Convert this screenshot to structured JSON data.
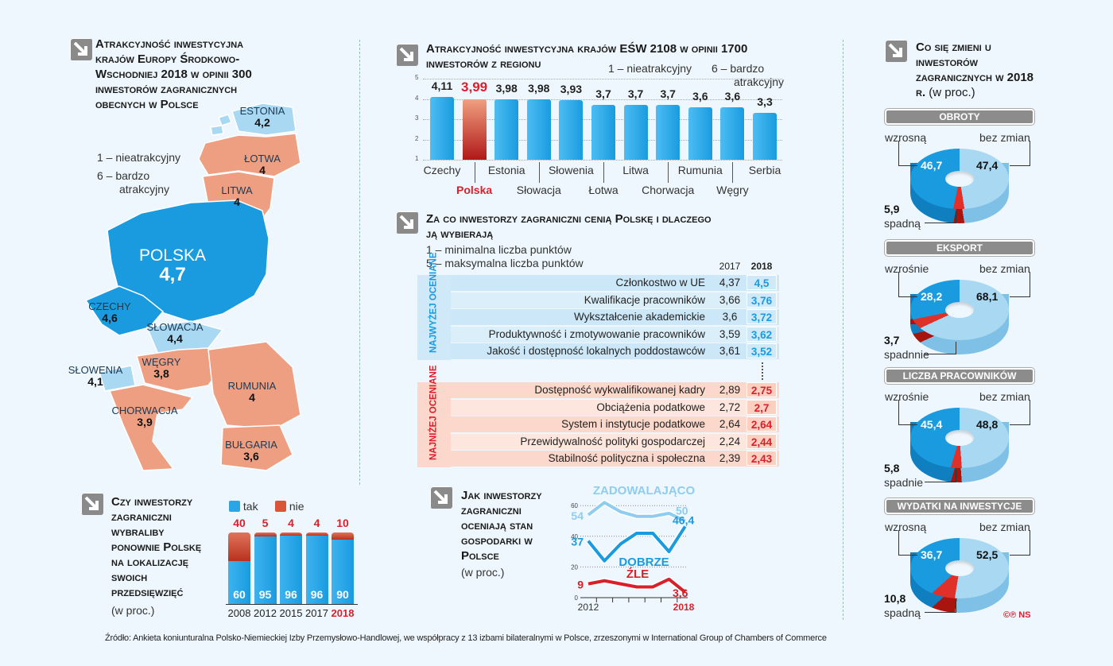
{
  "map": {
    "title": "Atrakcyjność inwestycyjna krajów Europy Środkowo-Wschodniej 2018 w opinii 300 inwestorów zagranicznych obecnych w Polsce",
    "legend_min": "1 – nieatrakcyjny",
    "legend_max": "6 – bardzo atrakcyjny",
    "countries": [
      {
        "name": "ESTONIA",
        "value": "4,2"
      },
      {
        "name": "ŁOTWA",
        "value": "4"
      },
      {
        "name": "LITWA",
        "value": "4"
      },
      {
        "name": "POLSKA",
        "value": "4,7"
      },
      {
        "name": "CZECHY",
        "value": "4,6"
      },
      {
        "name": "SŁOWACJA",
        "value": "4,4"
      },
      {
        "name": "SŁOWENIA",
        "value": "4,1"
      },
      {
        "name": "WĘGRY",
        "value": "3,8"
      },
      {
        "name": "RUMUNIA",
        "value": "4"
      },
      {
        "name": "CHORWACJA",
        "value": "3,9"
      },
      {
        "name": "BUŁGARIA",
        "value": "3,6"
      }
    ],
    "colors": {
      "high": "#1a9be0",
      "mid": "#a9d8f3",
      "low": "#ee9f82"
    }
  },
  "reselect": {
    "title": "Czy inwestorzy zagraniczni wybraliby ponownie Polskę na lokalizację swoich przedsięwzięć",
    "unit": "(w proc.)",
    "chart_data": {
      "type": "bar",
      "stacked": true,
      "categories": [
        "2008",
        "2012",
        "2015",
        "2017",
        "2018"
      ],
      "series": [
        {
          "name": "tak",
          "values": [
            60,
            95,
            96,
            96,
            90
          ],
          "color": "#2aa6e6"
        },
        {
          "name": "nie",
          "values": [
            40,
            5,
            4,
            4,
            10
          ],
          "color": "#d9553a"
        }
      ],
      "highlight": "2018"
    }
  },
  "cee": {
    "title": "Atrakcyjność inwestycyjna krajów EŚW 2108 w opinii 1700 inwestorów z regionu",
    "legend_min": "1 – nieatrakcyjny",
    "legend_max": "6 – bardzo atrakcyjny",
    "chart_data": {
      "type": "bar",
      "ylim": [
        1,
        5
      ],
      "yticks": [
        "1",
        "2",
        "3",
        "4",
        "5"
      ],
      "categories": [
        "Czechy",
        "Polska",
        "Estonia",
        "Słowacja",
        "Słowenia",
        "Łotwa",
        "Litwa",
        "Chorwacja",
        "Rumunia",
        "Węgry",
        "Serbia"
      ],
      "values": [
        4.11,
        3.99,
        3.98,
        3.98,
        3.93,
        3.7,
        3.7,
        3.7,
        3.6,
        3.6,
        3.3
      ],
      "labels": [
        "4,11",
        "3,99",
        "3,98",
        "3,98",
        "3,93",
        "3,7",
        "3,7",
        "3,7",
        "3,6",
        "3,6",
        "3,3"
      ],
      "highlight": "Polska"
    }
  },
  "reasons": {
    "title": "Za co inwestorzy zagraniczni cenią Polskę i dlaczego ją wybierają",
    "legend_min": "1 – minimalna liczba punktów",
    "legend_max": "5 – maksymalna liczba punktów",
    "col_2017": "2017",
    "col_2018": "2018",
    "top_label": "NAJWYŻEJ OCENIANE",
    "bottom_label": "NAJNIŻEJ OCENIANE",
    "top": [
      [
        "Członkostwo w UE",
        "4,37",
        "4,5"
      ],
      [
        "Kwalifikacje pracowników",
        "3,66",
        "3,76"
      ],
      [
        "Wykształcenie akademickie",
        "3,6",
        "3,72"
      ],
      [
        "Produktywność i zmotywowanie pracowników",
        "3,59",
        "3,62"
      ],
      [
        "Jakość i dostępność lokalnych poddostawców",
        "3,61",
        "3,52"
      ]
    ],
    "bottom": [
      [
        "Dostępność wykwalifikowanej kadry",
        "2,89",
        "2,75"
      ],
      [
        "Obciążenia podatkowe",
        "2,72",
        "2,7"
      ],
      [
        "System i instytucje podatkowe",
        "2,64",
        "2,64"
      ],
      [
        "Przewidywalność polityki gospodarczej",
        "2,24",
        "2,44"
      ],
      [
        "Stabilność polityczna i społeczna",
        "2,39",
        "2,43"
      ]
    ]
  },
  "economy": {
    "title": "Jak inwestorzy zagraniczni oceniają stan gospodarki w Polsce",
    "unit": "(w proc.)",
    "chart_data": {
      "type": "line",
      "ylim": [
        0,
        65
      ],
      "yticks": [
        "0",
        "20",
        "40",
        "60"
      ],
      "x_first": "2012",
      "x_last": "2018",
      "series": [
        {
          "name": "ZADOWALAJĄCO",
          "values": [
            54,
            62,
            56,
            53,
            53,
            55,
            50
          ],
          "first": "54",
          "last": "50",
          "color": "#8fcdf0"
        },
        {
          "name": "DOBRZE",
          "values": [
            37,
            24,
            35,
            42,
            42,
            30,
            46.4
          ],
          "first": "37",
          "last": "46,4",
          "color": "#1a9be0"
        },
        {
          "name": "ŹLE",
          "values": [
            9,
            11,
            9,
            7,
            7,
            12,
            3.6
          ],
          "first": "9",
          "last": "3,6",
          "color": "#d9202a"
        }
      ]
    }
  },
  "changes": {
    "title": "Co się zmieni u inwestorów zagranicznych w 2018 r.",
    "unit": "(w proc.)",
    "label_same": "bez zmian",
    "chart_data": [
      {
        "type": "pie",
        "title": "OBROTY",
        "up_label": "wzrosną",
        "down_label": "spadną",
        "up": "46,7",
        "same": "47,4",
        "down": "5,9",
        "values": [
          46.7,
          47.4,
          5.9
        ]
      },
      {
        "type": "pie",
        "title": "EKSPORT",
        "up_label": "wzrośnie",
        "down_label": "spadnnie",
        "up": "28,2",
        "same": "68,1",
        "down": "3,7",
        "values": [
          28.2,
          68.1,
          3.7
        ]
      },
      {
        "type": "pie",
        "title": "LICZBA PRACOWNIKÓW",
        "up_label": "wzrośnie",
        "down_label": "spadnie",
        "up": "45,4",
        "same": "48,8",
        "down": "5,8",
        "values": [
          45.4,
          48.8,
          5.8
        ]
      },
      {
        "type": "pie",
        "title": "WYDATKI NA INWESTYCJE",
        "up_label": "wzrosną",
        "down_label": "spadną",
        "up": "36,7",
        "same": "52,5",
        "down": "10,8",
        "values": [
          36.7,
          52.5,
          10.8
        ]
      }
    ],
    "colors": {
      "up": "#1a9be0",
      "same": "#a9d8f3",
      "down": "#e0302a"
    }
  },
  "credit": "©℗ NS",
  "source": "Źródło: Ankieta koniunturalna Polsko-Niemieckiej Izby Przemysłowo-Handlowej, we współpracy z 13 izbami bilateralnymi w Polsce, zrzeszonymi w International Group of Chambers of Commerce"
}
